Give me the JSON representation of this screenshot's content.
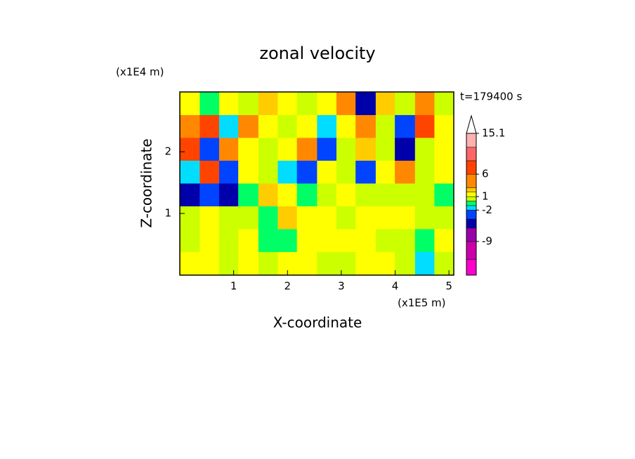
{
  "chart_data": {
    "type": "contour",
    "title": "zonal velocity",
    "x_label": "X-coordinate",
    "y_label": "Z-coordinate",
    "x_unit": "(x1E5 m)",
    "y_unit": "(x1E4 m)",
    "annotation": "t=179400 s",
    "xlim": [
      0,
      5.09
    ],
    "ylim": [
      0,
      2.97
    ],
    "xticks": [
      1,
      2,
      3,
      4,
      5
    ],
    "yticks": [
      1,
      2
    ],
    "x": [
      0.18,
      0.55,
      0.91,
      1.27,
      1.64,
      2.0,
      2.36,
      2.73,
      3.09,
      3.45,
      3.82,
      4.18,
      4.55,
      4.91
    ],
    "y": [
      2.78,
      2.41,
      2.04,
      1.67,
      1.3,
      0.93,
      0.56,
      0.19
    ],
    "z": [
      [
        1,
        -1,
        1,
        0.5,
        2,
        1,
        0.5,
        1,
        3,
        -6,
        2,
        0,
        3,
        0
      ],
      [
        3,
        6,
        -2,
        3,
        1,
        0.5,
        1,
        -2,
        1,
        5,
        0,
        -3,
        6,
        1
      ],
      [
        6,
        -4,
        5,
        1,
        0.5,
        1,
        5,
        -4,
        0,
        2,
        0,
        -6,
        0,
        1
      ],
      [
        -2,
        6,
        -4,
        1,
        0,
        -2,
        -3,
        1,
        0,
        -4,
        1,
        3,
        0,
        1
      ],
      [
        -6,
        -4,
        -6,
        -1,
        2,
        1,
        -1,
        0,
        1,
        0,
        0,
        0,
        0,
        -0.5
      ],
      [
        0,
        1,
        0,
        0.5,
        -1,
        2,
        1,
        1,
        0,
        1,
        1,
        1,
        0,
        0
      ],
      [
        0,
        1,
        0.5,
        1,
        -0.5,
        -1,
        1,
        1,
        1,
        1,
        0,
        0,
        -0.5,
        1
      ],
      [
        1,
        1,
        0,
        1,
        0,
        1,
        1,
        0,
        0,
        1,
        1,
        0,
        -2,
        0
      ]
    ],
    "colorbar": {
      "levels": [
        -16.5,
        -13,
        -9,
        -6,
        -4,
        -2,
        -1,
        0,
        1,
        2,
        3,
        6,
        9,
        12,
        15.1
      ],
      "colors": [
        "#ff00cc",
        "#cc00aa",
        "#9900aa",
        "#0000aa",
        "#0044ff",
        "#00ddff",
        "#00ff66",
        "#ccff00",
        "#ffff00",
        "#ffcc00",
        "#ff8800",
        "#ff4400",
        "#ff6666",
        "#ffb0b0"
      ],
      "extend_color": "#ffffff",
      "ticks": [
        15.1,
        6,
        1,
        -2,
        -9
      ]
    }
  }
}
